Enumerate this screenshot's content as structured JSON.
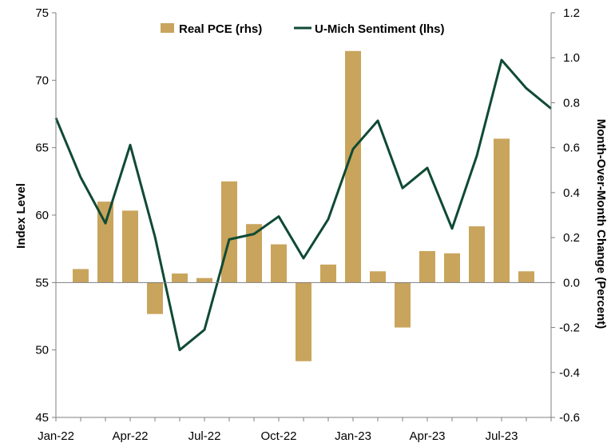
{
  "chart_data": {
    "type": "bar+line",
    "title": "",
    "x_ticks": [
      "Jan-22",
      "Apr-22",
      "Jul-22",
      "Oct-22",
      "Jan-23",
      "Apr-23",
      "Jul-23"
    ],
    "ylabel_left": "Index Level",
    "ylabel_right": "Month-Over-Month Change (Percent)",
    "left_axis": {
      "min": 45,
      "max": 75,
      "step": 5,
      "tick_labels": [
        "45",
        "50",
        "55",
        "60",
        "65",
        "70",
        "75"
      ]
    },
    "right_axis": {
      "min": -0.6,
      "max": 1.2,
      "step": 0.2,
      "tick_labels": [
        "-0.6",
        "-0.4",
        "-0.2",
        "0.0",
        "0.2",
        "0.4",
        "0.6",
        "0.8",
        "1.0",
        "1.2"
      ]
    },
    "legend": {
      "placement": "top-center"
    },
    "months": [
      "Jan-22",
      "Feb-22",
      "Mar-22",
      "Apr-22",
      "May-22",
      "Jun-22",
      "Jul-22",
      "Aug-22",
      "Sep-22",
      "Oct-22",
      "Nov-22",
      "Dec-22",
      "Jan-23",
      "Feb-23",
      "Mar-23",
      "Apr-23",
      "May-23",
      "Jun-23",
      "Jul-23",
      "Aug-23",
      "Sep-23"
    ],
    "series": [
      {
        "name": "Real PCE (rhs)",
        "type": "bar",
        "axis": "right",
        "color": "#c9a45c",
        "values": [
          null,
          0.06,
          0.36,
          0.32,
          -0.14,
          0.04,
          0.02,
          0.45,
          0.26,
          0.17,
          -0.35,
          0.08,
          1.03,
          0.05,
          -0.2,
          0.14,
          0.13,
          0.25,
          0.64,
          0.05,
          null
        ]
      },
      {
        "name": "U-Mich Sentiment (lhs)",
        "type": "line",
        "axis": "left",
        "color": "#0f4a34",
        "values": [
          67.2,
          62.8,
          59.4,
          65.2,
          58.4,
          50.0,
          51.5,
          58.2,
          58.6,
          59.9,
          56.8,
          59.7,
          64.9,
          67.0,
          62.0,
          63.5,
          59.0,
          64.4,
          71.5,
          69.4,
          67.9
        ]
      }
    ]
  }
}
